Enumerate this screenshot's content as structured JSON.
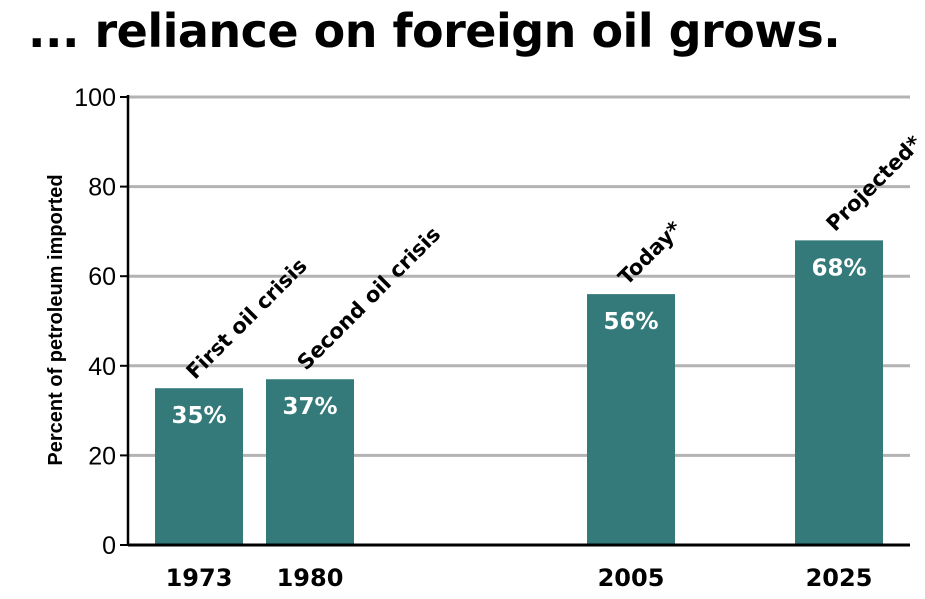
{
  "title": "... reliance on foreign oil grows.",
  "chart_data": {
    "type": "bar",
    "categories": [
      "1973",
      "1980",
      "2005",
      "2025"
    ],
    "values": [
      35,
      37,
      56,
      68
    ],
    "data_labels": [
      "35%",
      "37%",
      "56%",
      "68%"
    ],
    "annotations": [
      "First oil crisis",
      "Second oil crisis",
      "Today*",
      "Projected*"
    ],
    "ylabel": "Percent of petroleum imported",
    "xlabel": "",
    "ylim": [
      0,
      100
    ],
    "yticks": [
      0,
      20,
      40,
      60,
      80,
      100
    ],
    "grid": true,
    "bar_color": "#347a7b",
    "grid_color": "#b3b3b3"
  }
}
